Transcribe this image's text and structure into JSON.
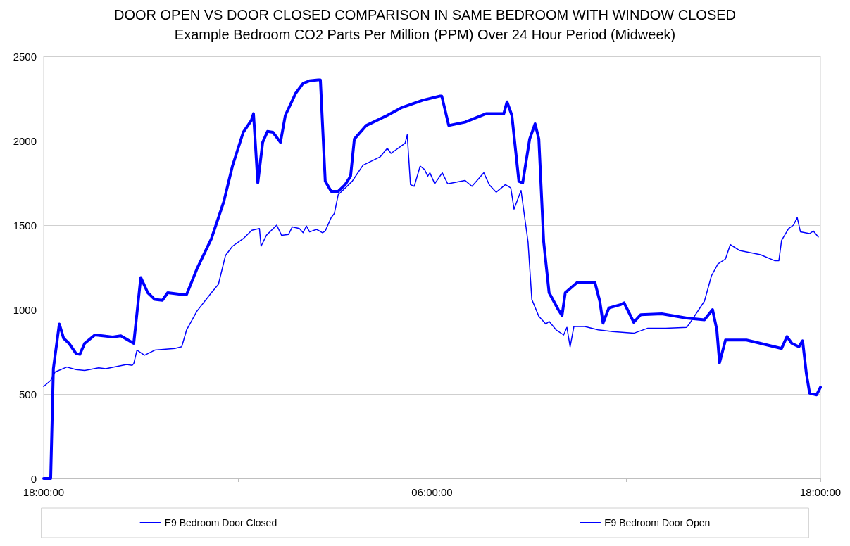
{
  "chart_data": {
    "type": "line",
    "title": "DOOR OPEN VS DOOR CLOSED COMPARISON IN SAME BEDROOM WITH WINDOW CLOSED",
    "subtitle": "Example Bedroom CO2 Parts Per Million (PPM) Over 24 Hour Period (Midweek)",
    "xlim": [
      "2000-01-01T18:00",
      "2000-01-02T18:00"
    ],
    "xticks": [
      {
        "value": "2000-01-01T18:00",
        "label": "18:00:00"
      },
      {
        "value": "2000-01-02T00:00",
        "label": null
      },
      {
        "value": "2000-01-02T06:00",
        "label": "06:00:00"
      },
      {
        "value": "2000-01-02T12:00",
        "label": null
      },
      {
        "value": "2000-01-02T18:00",
        "label": "18:00:00"
      }
    ],
    "ylim": [
      0,
      2500
    ],
    "yticks": [
      0,
      500,
      1000,
      1500,
      2000,
      2500
    ],
    "grid": "y",
    "legend": "bottom",
    "marker": "none",
    "line_style": "solid",
    "series": [
      {
        "name": "E9 Bedroom Door Closed",
        "color": "#0000ff",
        "x": [
          "2000-01-01T18:00",
          "2000-01-01T18:13",
          "2000-01-01T18:18",
          "2000-01-01T18:29",
          "2000-01-01T18:37",
          "2000-01-01T18:47",
          "2000-01-01T19:00",
          "2000-01-01T19:07",
          "2000-01-01T19:16",
          "2000-01-01T19:35",
          "2000-01-01T20:08",
          "2000-01-01T20:23",
          "2000-01-01T20:47",
          "2000-01-01T21:00",
          "2000-01-01T21:13",
          "2000-01-01T21:26",
          "2000-01-01T21:40",
          "2000-01-01T21:50",
          "2000-01-01T22:19",
          "2000-01-01T22:25",
          "2000-01-01T22:44",
          "2000-01-01T23:11",
          "2000-01-01T23:34",
          "2000-01-01T23:50",
          "2000-01-02T00:10",
          "2000-01-02T00:25",
          "2000-01-02T00:29",
          "2000-01-02T00:37",
          "2000-01-02T00:46",
          "2000-01-02T00:55",
          "2000-01-02T01:05",
          "2000-01-02T01:19",
          "2000-01-02T01:28",
          "2000-01-02T01:47",
          "2000-01-02T02:01",
          "2000-01-02T02:13",
          "2000-01-02T02:29",
          "2000-01-02T02:33",
          "2000-01-02T02:42",
          "2000-01-02T02:53",
          "2000-01-02T03:06",
          "2000-01-02T03:19",
          "2000-01-02T03:29",
          "2000-01-02T03:36",
          "2000-01-02T03:58",
          "2000-01-02T04:37",
          "2000-01-02T05:03",
          "2000-01-02T05:43",
          "2000-01-02T06:15",
          "2000-01-02T06:18",
          "2000-01-02T06:31",
          "2000-01-02T07:01",
          "2000-01-02T07:40",
          "2000-01-02T08:13",
          "2000-01-02T08:19",
          "2000-01-02T08:28",
          "2000-01-02T08:41",
          "2000-01-02T08:48",
          "2000-01-02T09:01",
          "2000-01-02T09:11",
          "2000-01-02T09:18",
          "2000-01-02T09:27",
          "2000-01-02T09:37",
          "2000-01-02T09:54",
          "2000-01-02T10:01",
          "2000-01-02T10:07",
          "2000-01-02T10:29",
          "2000-01-02T11:02",
          "2000-01-02T11:11",
          "2000-01-02T11:17",
          "2000-01-02T11:28",
          "2000-01-02T11:50",
          "2000-01-02T11:56",
          "2000-01-02T12:14",
          "2000-01-02T12:27",
          "2000-01-02T13:06",
          "2000-01-02T13:52",
          "2000-01-02T14:25",
          "2000-01-02T14:40",
          "2000-01-02T14:48",
          "2000-01-02T14:53",
          "2000-01-02T15:04",
          "2000-01-02T15:43",
          "2000-01-02T16:09",
          "2000-01-02T16:48",
          "2000-01-02T16:58",
          "2000-01-02T17:07",
          "2000-01-02T17:20",
          "2000-01-02T17:27",
          "2000-01-02T17:34",
          "2000-01-02T17:40",
          "2000-01-02T17:53",
          "2000-01-02T18:00"
        ],
        "values": [
          0,
          0,
          650,
          915,
          830,
          800,
          740,
          735,
          800,
          850,
          838,
          845,
          800,
          1190,
          1100,
          1060,
          1055,
          1100,
          1088,
          1090,
          1240,
          1420,
          1640,
          1850,
          2050,
          2120,
          2160,
          1750,
          1990,
          2055,
          2050,
          1990,
          2150,
          2280,
          2340,
          2355,
          2360,
          2360,
          1760,
          1700,
          1700,
          1740,
          1790,
          2010,
          2090,
          2150,
          2195,
          2240,
          2265,
          2265,
          2090,
          2110,
          2160,
          2160,
          2230,
          2150,
          1760,
          1750,
          2010,
          2100,
          2010,
          1400,
          1100,
          1000,
          965,
          1100,
          1160,
          1160,
          1050,
          920,
          1010,
          1030,
          1040,
          925,
          970,
          975,
          950,
          940,
          1000,
          880,
          685,
          820,
          820,
          800,
          770,
          840,
          800,
          780,
          815,
          620,
          505,
          495,
          540
        ]
      },
      {
        "name": "E9 Bedroom Door Open",
        "color": "#0000ff",
        "x": [
          "2000-01-01T18:00",
          "2000-01-01T18:13",
          "2000-01-01T18:21",
          "2000-01-01T18:43",
          "2000-01-01T19:00",
          "2000-01-01T19:16",
          "2000-01-01T19:42",
          "2000-01-01T19:55",
          "2000-01-01T20:34",
          "2000-01-01T20:44",
          "2000-01-01T20:47",
          "2000-01-01T20:53",
          "2000-01-01T21:07",
          "2000-01-01T21:26",
          "2000-01-01T22:03",
          "2000-01-01T22:16",
          "2000-01-01T22:25",
          "2000-01-01T22:44",
          "2000-01-01T23:11",
          "2000-01-01T23:24",
          "2000-01-01T23:37",
          "2000-01-01T23:50",
          "2000-01-02T00:10",
          "2000-01-02T00:26",
          "2000-01-02T00:40",
          "2000-01-02T00:43",
          "2000-01-02T00:53",
          "2000-01-02T01:12",
          "2000-01-02T01:21",
          "2000-01-02T01:34",
          "2000-01-02T01:41",
          "2000-01-02T01:54",
          "2000-01-02T02:01",
          "2000-01-02T02:07",
          "2000-01-02T02:13",
          "2000-01-02T02:26",
          "2000-01-02T02:37",
          "2000-01-02T02:42",
          "2000-01-02T02:53",
          "2000-01-02T02:59",
          "2000-01-02T03:06",
          "2000-01-02T03:19",
          "2000-01-02T03:32",
          "2000-01-02T03:52",
          "2000-01-02T04:24",
          "2000-01-02T04:37",
          "2000-01-02T04:44",
          "2000-01-02T05:10",
          "2000-01-02T05:14",
          "2000-01-02T05:20",
          "2000-01-02T05:27",
          "2000-01-02T05:38",
          "2000-01-02T05:46",
          "2000-01-02T05:52",
          "2000-01-02T05:56",
          "2000-01-02T06:05",
          "2000-01-02T06:19",
          "2000-01-02T06:29",
          "2000-01-02T07:01",
          "2000-01-02T07:14",
          "2000-01-02T07:36",
          "2000-01-02T07:46",
          "2000-01-02T07:59",
          "2000-01-02T08:16",
          "2000-01-02T08:26",
          "2000-01-02T08:32",
          "2000-01-02T08:45",
          "2000-01-02T08:58",
          "2000-01-02T09:05",
          "2000-01-02T09:18",
          "2000-01-02T09:31",
          "2000-01-02T09:37",
          "2000-01-02T09:50",
          "2000-01-02T10:04",
          "2000-01-02T10:10",
          "2000-01-02T10:16",
          "2000-01-02T10:23",
          "2000-01-02T10:43",
          "2000-01-02T11:08",
          "2000-01-02T11:35",
          "2000-01-02T12:14",
          "2000-01-02T12:40",
          "2000-01-02T13:13",
          "2000-01-02T13:52",
          "2000-01-02T13:58",
          "2000-01-02T14:25",
          "2000-01-02T14:38",
          "2000-01-02T14:50",
          "2000-01-02T15:04",
          "2000-01-02T15:13",
          "2000-01-02T15:30",
          "2000-01-02T16:09",
          "2000-01-02T16:35",
          "2000-01-02T16:43",
          "2000-01-02T16:48",
          "2000-01-02T17:01",
          "2000-01-02T17:10",
          "2000-01-02T17:17",
          "2000-01-02T17:23",
          "2000-01-02T17:40",
          "2000-01-02T17:47",
          "2000-01-02T17:56"
        ],
        "values": [
          545,
          580,
          630,
          660,
          645,
          640,
          655,
          650,
          675,
          670,
          680,
          760,
          730,
          760,
          770,
          780,
          880,
          990,
          1100,
          1150,
          1320,
          1375,
          1420,
          1470,
          1480,
          1375,
          1440,
          1500,
          1440,
          1445,
          1490,
          1480,
          1455,
          1495,
          1460,
          1475,
          1455,
          1465,
          1545,
          1570,
          1680,
          1720,
          1760,
          1855,
          1905,
          1955,
          1925,
          1985,
          2035,
          1740,
          1730,
          1850,
          1830,
          1790,
          1810,
          1745,
          1810,
          1745,
          1765,
          1730,
          1810,
          1740,
          1695,
          1740,
          1720,
          1595,
          1705,
          1400,
          1060,
          960,
          915,
          930,
          880,
          850,
          895,
          780,
          900,
          900,
          880,
          870,
          860,
          890,
          890,
          895,
          920,
          1050,
          1200,
          1270,
          1300,
          1385,
          1350,
          1325,
          1290,
          1290,
          1410,
          1480,
          1500,
          1545,
          1460,
          1450,
          1465,
          1430
        ]
      }
    ]
  }
}
